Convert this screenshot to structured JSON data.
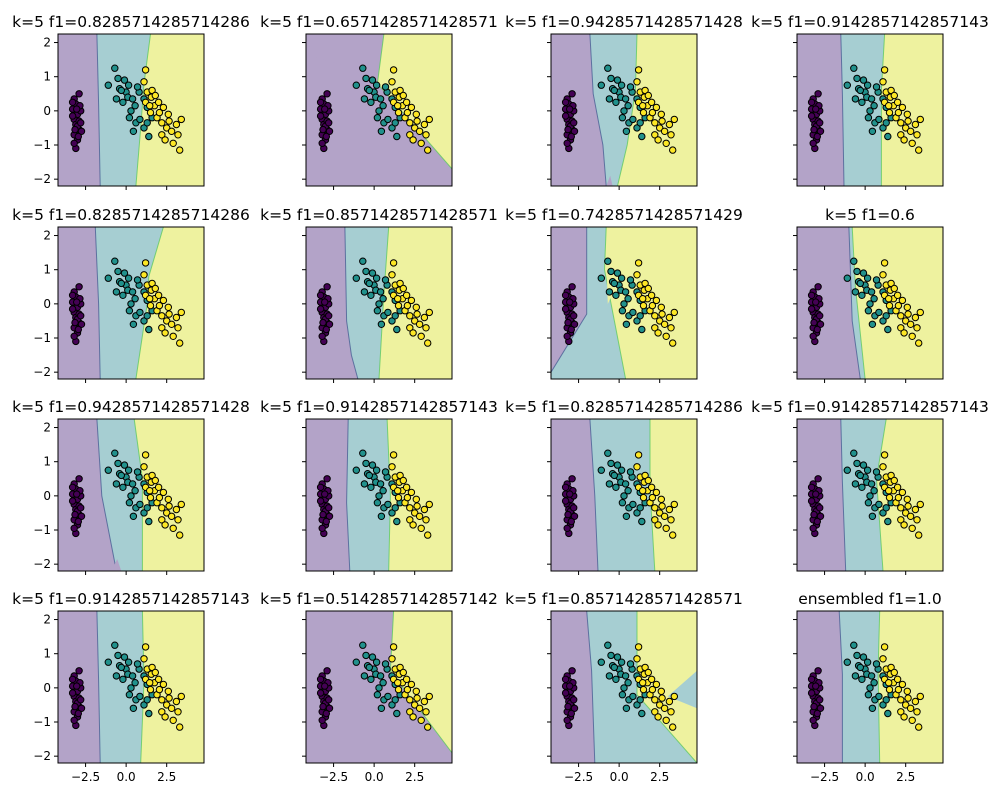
{
  "chart_data": {
    "type": "scatter",
    "layout": {
      "rows": 4,
      "cols": 4,
      "sharex": true,
      "sharey": true
    },
    "xlim": [
      -4.2,
      4.8
    ],
    "ylim": [
      -2.2,
      2.25
    ],
    "xticks": [
      -2.5,
      0.0,
      2.5
    ],
    "xtick_labels": [
      "−2.5",
      "0.0",
      "2.5"
    ],
    "yticks": [
      -2,
      -1,
      0,
      1,
      2
    ],
    "ytick_labels": [
      "−2",
      "−1",
      "0",
      "1",
      "2"
    ],
    "grid": false,
    "legend": "none",
    "region_colors": {
      "0": "#b3a3c8",
      "1": "#a6ced2",
      "2": "#eef29f"
    },
    "point_colors": {
      "0": "#440154",
      "1": "#21918c",
      "2": "#fde725"
    },
    "points": [
      {
        "x": -3.2,
        "y": 0.35,
        "c": 0
      },
      {
        "x": -3.1,
        "y": 0.2,
        "c": 0
      },
      {
        "x": -3.3,
        "y": 0.05,
        "c": 0
      },
      {
        "x": -3.0,
        "y": -0.1,
        "c": 0
      },
      {
        "x": -3.2,
        "y": -0.25,
        "c": 0
      },
      {
        "x": -3.1,
        "y": -0.4,
        "c": 0
      },
      {
        "x": -2.9,
        "y": -0.55,
        "c": 0
      },
      {
        "x": -3.2,
        "y": -0.7,
        "c": 0
      },
      {
        "x": -3.0,
        "y": -0.85,
        "c": 0
      },
      {
        "x": -2.9,
        "y": 0.5,
        "c": 0
      },
      {
        "x": -3.3,
        "y": -0.15,
        "c": 0
      },
      {
        "x": -2.8,
        "y": 0.0,
        "c": 0
      },
      {
        "x": -2.9,
        "y": -0.3,
        "c": 0
      },
      {
        "x": -3.1,
        "y": -1.1,
        "c": 0
      },
      {
        "x": -3.0,
        "y": -0.45,
        "c": 0
      },
      {
        "x": -2.75,
        "y": -0.6,
        "c": 0
      },
      {
        "x": -3.3,
        "y": 0.25,
        "c": 0
      },
      {
        "x": -2.85,
        "y": 0.15,
        "c": 0
      },
      {
        "x": -3.15,
        "y": -0.55,
        "c": 0
      },
      {
        "x": -2.95,
        "y": -0.75,
        "c": 0
      },
      {
        "x": -3.2,
        "y": -0.95,
        "c": 0
      },
      {
        "x": -2.8,
        "y": -0.35,
        "c": 0
      },
      {
        "x": -3.05,
        "y": 0.05,
        "c": 0
      },
      {
        "x": -1.1,
        "y": 0.75,
        "c": 1
      },
      {
        "x": -0.7,
        "y": 1.25,
        "c": 1
      },
      {
        "x": -0.5,
        "y": 0.95,
        "c": 1
      },
      {
        "x": -0.4,
        "y": 0.65,
        "c": 1
      },
      {
        "x": -0.1,
        "y": 0.9,
        "c": 1
      },
      {
        "x": 0.0,
        "y": 0.55,
        "c": 1
      },
      {
        "x": -0.6,
        "y": 0.35,
        "c": 1
      },
      {
        "x": -0.2,
        "y": 0.25,
        "c": 1
      },
      {
        "x": 0.1,
        "y": 0.4,
        "c": 1
      },
      {
        "x": 0.3,
        "y": 0.0,
        "c": 1
      },
      {
        "x": 0.4,
        "y": 0.35,
        "c": 1
      },
      {
        "x": 0.2,
        "y": -0.2,
        "c": 1
      },
      {
        "x": 0.55,
        "y": 0.15,
        "c": 1
      },
      {
        "x": 0.6,
        "y": -0.35,
        "c": 1
      },
      {
        "x": 0.85,
        "y": -0.25,
        "c": 1
      },
      {
        "x": 1.1,
        "y": -0.5,
        "c": 1
      },
      {
        "x": 1.3,
        "y": -0.35,
        "c": 1
      },
      {
        "x": 0.8,
        "y": 0.55,
        "c": 1
      },
      {
        "x": 1.1,
        "y": 0.35,
        "c": 1
      },
      {
        "x": 1.3,
        "y": 0.1,
        "c": 1
      },
      {
        "x": 0.45,
        "y": -0.6,
        "c": 1
      },
      {
        "x": 1.4,
        "y": -0.75,
        "c": 1
      },
      {
        "x": 1.6,
        "y": -0.2,
        "c": 1
      },
      {
        "x": 0.7,
        "y": 0.7,
        "c": 1
      },
      {
        "x": -0.3,
        "y": 0.6,
        "c": 1
      },
      {
        "x": 0.15,
        "y": 0.75,
        "c": 1
      },
      {
        "x": 1.2,
        "y": 1.2,
        "c": 2
      },
      {
        "x": 1.1,
        "y": 0.85,
        "c": 2
      },
      {
        "x": 1.3,
        "y": 0.55,
        "c": 2
      },
      {
        "x": 1.55,
        "y": 0.4,
        "c": 2
      },
      {
        "x": 1.2,
        "y": 0.25,
        "c": 2
      },
      {
        "x": 1.75,
        "y": 0.15,
        "c": 2
      },
      {
        "x": 1.5,
        "y": -0.05,
        "c": 2
      },
      {
        "x": 2.0,
        "y": 0.25,
        "c": 2
      },
      {
        "x": 2.3,
        "y": 0.1,
        "c": 2
      },
      {
        "x": 1.9,
        "y": -0.2,
        "c": 2
      },
      {
        "x": 2.2,
        "y": -0.35,
        "c": 2
      },
      {
        "x": 2.6,
        "y": -0.1,
        "c": 2
      },
      {
        "x": 2.5,
        "y": -0.5,
        "c": 2
      },
      {
        "x": 2.8,
        "y": -0.6,
        "c": 2
      },
      {
        "x": 3.1,
        "y": -0.4,
        "c": 2
      },
      {
        "x": 3.4,
        "y": -0.25,
        "c": 2
      },
      {
        "x": 3.2,
        "y": -0.7,
        "c": 2
      },
      {
        "x": 2.9,
        "y": -0.95,
        "c": 2
      },
      {
        "x": 3.3,
        "y": -1.15,
        "c": 2
      },
      {
        "x": 1.6,
        "y": 0.6,
        "c": 2
      },
      {
        "x": 2.2,
        "y": -0.7,
        "c": 2
      },
      {
        "x": 1.8,
        "y": 0.45,
        "c": 2
      },
      {
        "x": 2.65,
        "y": -0.3,
        "c": 2
      },
      {
        "x": 1.45,
        "y": 0.15,
        "c": 2
      },
      {
        "x": 2.05,
        "y": -0.05,
        "c": 2
      },
      {
        "x": 2.4,
        "y": -0.85,
        "c": 2
      }
    ],
    "subplots": [
      {
        "title": "k=5 f1=0.8285714285714286",
        "b1": [
          [
            -1.8,
            2.25
          ],
          [
            -1.7,
            0.2
          ],
          [
            -1.6,
            -2.2
          ]
        ],
        "b2": [
          [
            1.5,
            2.25
          ],
          [
            1.1,
            0.8
          ],
          [
            0.9,
            -0.5
          ],
          [
            0.6,
            -2.2
          ]
        ],
        "extra": []
      },
      {
        "title": "k=5 f1=0.6571428571428571",
        "b1": [],
        "b2": [
          [
            0.6,
            2.25
          ],
          [
            0.2,
            0.8
          ],
          [
            4.8,
            -1.7
          ]
        ],
        "extra": [
          {
            "c": 0,
            "poly": [
              [
                -4.2,
                2.25
              ],
              [
                -1.3,
                2.25
              ],
              [
                -1.3,
                1.25
              ],
              [
                -4.2,
                1.65
              ]
            ]
          }
        ]
      },
      {
        "title": "k=5 f1=0.9428571428571428",
        "b1": [
          [
            -1.8,
            2.25
          ],
          [
            -1.6,
            0.5
          ],
          [
            -1.0,
            -1.0
          ],
          [
            -0.8,
            -2.2
          ]
        ],
        "b2": [
          [
            1.1,
            2.25
          ],
          [
            1.0,
            0.6
          ],
          [
            0.5,
            -1.0
          ],
          [
            -0.1,
            -2.2
          ]
        ],
        "extra": [
          {
            "c": 0,
            "poly": [
              [
                -0.8,
                -2.2
              ],
              [
                -0.55,
                -1.9
              ],
              [
                -0.4,
                -2.2
              ]
            ]
          }
        ]
      },
      {
        "title": "k=5 f1=0.9142857142857143",
        "b1": [
          [
            -1.5,
            2.25
          ],
          [
            -1.4,
            0.5
          ],
          [
            -1.3,
            -2.2
          ]
        ],
        "b2": [
          [
            1.2,
            2.25
          ],
          [
            1.0,
            0.6
          ],
          [
            1.0,
            -2.2
          ]
        ],
        "extra": []
      },
      {
        "title": "k=5 f1=0.8285714285714286",
        "b1": [
          [
            -1.9,
            2.25
          ],
          [
            -1.7,
            0.0
          ],
          [
            -1.6,
            -2.2
          ]
        ],
        "b2": [
          [
            2.3,
            2.25
          ],
          [
            1.4,
            0.8
          ],
          [
            1.3,
            0.0
          ],
          [
            0.6,
            -2.2
          ]
        ],
        "extra": []
      },
      {
        "title": "k=5 f1=0.8571428571428571",
        "b1": [
          [
            -1.8,
            2.25
          ],
          [
            -1.7,
            -0.5
          ],
          [
            -1.4,
            -1.5
          ],
          [
            -1.0,
            -2.2
          ]
        ],
        "b2": [
          [
            0.9,
            2.25
          ],
          [
            0.6,
            0.3
          ],
          [
            0.3,
            -2.2
          ]
        ],
        "extra": []
      },
      {
        "title": "k=5 f1=0.7428571428571429",
        "b1": [
          [
            -2.0,
            2.25
          ],
          [
            -2.0,
            -0.3
          ],
          [
            -4.2,
            -2.0
          ]
        ],
        "b2": [
          [
            -0.8,
            2.25
          ],
          [
            -0.9,
            1.0
          ],
          [
            0.4,
            -2.2
          ]
        ],
        "extra": [
          {
            "c": 2,
            "poly": [
              [
                -0.8,
                1.3
              ],
              [
                0.3,
                1.0
              ],
              [
                -0.7,
                0.0
              ]
            ]
          }
        ]
      },
      {
        "title": "k=5 f1=0.6",
        "b1": [
          [
            -1.0,
            2.25
          ],
          [
            -0.8,
            -0.5
          ],
          [
            -0.3,
            -2.2
          ]
        ],
        "b2": [
          [
            -0.8,
            2.25
          ],
          [
            -0.6,
            0.5
          ],
          [
            0.0,
            -2.2
          ]
        ],
        "extra": []
      },
      {
        "title": "k=5 f1=0.9428571428571428",
        "b1": [
          [
            -1.8,
            2.25
          ],
          [
            -1.5,
            0.0
          ],
          [
            -0.6,
            -2.2
          ]
        ],
        "b2": [
          [
            0.5,
            2.25
          ],
          [
            1.0,
            0.5
          ],
          [
            1.0,
            -2.2
          ]
        ],
        "extra": [
          {
            "c": 0,
            "poly": [
              [
                -0.9,
                -2.2
              ],
              [
                -0.55,
                -1.85
              ],
              [
                -0.3,
                -2.2
              ]
            ]
          }
        ]
      },
      {
        "title": "k=5 f1=0.9142857142857143",
        "b1": [
          [
            -1.6,
            2.25
          ],
          [
            -1.7,
            -0.2
          ],
          [
            -1.5,
            -2.2
          ]
        ],
        "b2": [
          [
            0.8,
            2.25
          ],
          [
            1.0,
            0.0
          ],
          [
            0.9,
            -2.2
          ]
        ],
        "extra": []
      },
      {
        "title": "k=5 f1=0.8285714285714286",
        "b1": [
          [
            -1.8,
            2.25
          ],
          [
            -1.5,
            0.0
          ],
          [
            -1.3,
            -2.2
          ]
        ],
        "b2": [
          [
            1.9,
            2.25
          ],
          [
            1.9,
            0.2
          ],
          [
            2.2,
            -2.2
          ]
        ],
        "extra": []
      },
      {
        "title": "k=5 f1=0.9142857142857143",
        "b1": [
          [
            -1.5,
            2.25
          ],
          [
            -1.4,
            0.4
          ],
          [
            -1.2,
            -2.2
          ]
        ],
        "b2": [
          [
            1.3,
            2.25
          ],
          [
            0.7,
            0.5
          ],
          [
            1.1,
            -2.2
          ]
        ],
        "extra": []
      },
      {
        "title": "k=5 f1=0.9142857142857143",
        "b1": [
          [
            -1.8,
            2.25
          ],
          [
            -1.7,
            0.2
          ],
          [
            -1.6,
            -2.2
          ]
        ],
        "b2": [
          [
            1.0,
            2.25
          ],
          [
            1.1,
            0.2
          ],
          [
            0.9,
            -2.2
          ]
        ],
        "extra": []
      },
      {
        "title": "k=5 f1=0.5142857142857142",
        "b1": [],
        "b2": [
          [
            1.2,
            2.25
          ],
          [
            1.0,
            0.5
          ],
          [
            4.8,
            -1.9
          ]
        ],
        "extra": []
      },
      {
        "title": "k=5 f1=0.8571428571428571",
        "b1": [
          [
            -2.0,
            2.25
          ],
          [
            -1.7,
            0.5
          ],
          [
            -1.5,
            -2.2
          ]
        ],
        "b2": [
          [
            1.1,
            2.25
          ],
          [
            1.1,
            -0.2
          ],
          [
            4.8,
            -2.2
          ]
        ],
        "extra": [
          {
            "c": 2,
            "poly": [
              [
                1.5,
                0.0
              ],
              [
                4.8,
                0.5
              ],
              [
                4.8,
                -0.6
              ]
            ]
          },
          {
            "c": 1,
            "poly": [
              [
                3.0,
                -0.25
              ],
              [
                4.8,
                0.5
              ],
              [
                4.8,
                -0.6
              ]
            ]
          }
        ]
      },
      {
        "title": "ensembled f1=1.0",
        "b1": [
          [
            -1.6,
            2.25
          ],
          [
            -1.4,
            0.4
          ],
          [
            -1.4,
            -2.2
          ]
        ],
        "b2": [
          [
            0.9,
            2.25
          ],
          [
            0.8,
            0.5
          ],
          [
            0.9,
            -2.2
          ]
        ],
        "extra": []
      }
    ]
  }
}
